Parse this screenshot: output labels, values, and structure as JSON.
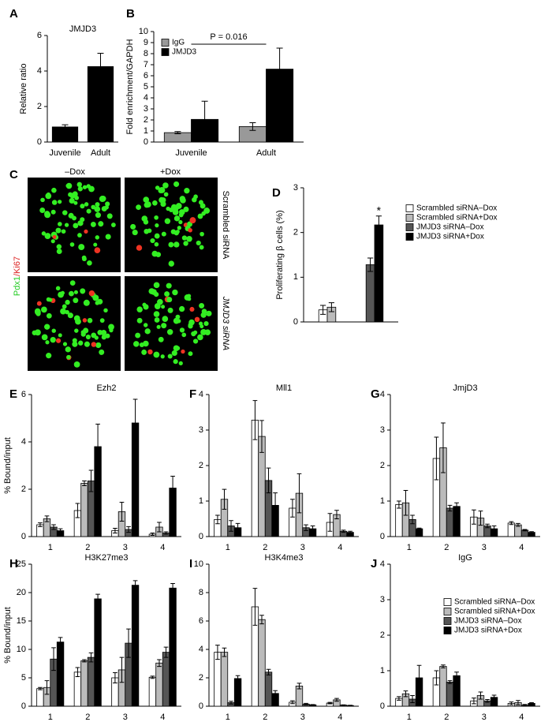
{
  "chart_data": [
    {
      "type": "bar",
      "panel": "A",
      "title": "JMJD3",
      "ylabel": "Relative ratio",
      "categories": [
        "Juvenile",
        "Adult"
      ],
      "values": [
        0.85,
        4.25
      ],
      "errors": [
        0.12,
        0.75
      ],
      "color": "#000000",
      "ylim": [
        0,
        6
      ],
      "yticks": [
        0,
        2,
        4,
        6
      ]
    },
    {
      "type": "bar",
      "panel": "B",
      "ylabel": "Fold enrichment/GAPDH",
      "categories": [
        "Juvenile",
        "Adult"
      ],
      "series": [
        {
          "name": "IgG",
          "color": "#999999",
          "values": [
            0.85,
            1.4
          ],
          "errors": [
            0.1,
            0.35
          ]
        },
        {
          "name": "JMJD3",
          "color": "#000000",
          "values": [
            2.05,
            6.6
          ],
          "errors": [
            1.65,
            1.9
          ]
        }
      ],
      "ylim": [
        0,
        10
      ],
      "yticks": [
        0,
        1,
        2,
        3,
        4,
        5,
        6,
        7,
        8,
        9,
        10
      ],
      "legend": "upper left",
      "annotation": "P = 0.016"
    },
    {
      "type": "bar",
      "panel": "D",
      "ylabel": "Proliferating β cells (%)",
      "categories": [
        null,
        null
      ],
      "series": [
        {
          "name": "Scrambled siRNA–Dox",
          "color": "#ffffff",
          "values": [
            0.27,
            null
          ],
          "errors": [
            0.1,
            null
          ]
        },
        {
          "name": "Scrambled siRNA+Dox",
          "color": "#bbbbbb",
          "values": [
            0.33,
            null
          ],
          "errors": [
            0.1,
            null
          ]
        },
        {
          "name": "JMJD3 siRNA–Dox",
          "color": "#555555",
          "values": [
            null,
            1.28
          ],
          "errors": [
            null,
            0.15
          ]
        },
        {
          "name": "JMJD3 siRNA+Dox",
          "color": "#000000",
          "values": [
            null,
            2.17
          ],
          "errors": [
            null,
            0.2
          ]
        }
      ],
      "ylim": [
        0,
        3
      ],
      "yticks": [
        0,
        1,
        2,
        3
      ],
      "legend": "right",
      "annotation": "*"
    },
    {
      "type": "bar",
      "panel": "E",
      "title": "Ezh2",
      "ylabel": "% Bound/input",
      "categories": [
        "1",
        "2",
        "3",
        "4"
      ],
      "series": [
        {
          "name": "Scrambled siRNA–Dox",
          "color": "#ffffff",
          "values": [
            0.5,
            1.1,
            0.25,
            0.1
          ],
          "errors": [
            0.08,
            0.3,
            0.1,
            0.05
          ]
        },
        {
          "name": "Scrambled siRNA+Dox",
          "color": "#bbbbbb",
          "values": [
            0.75,
            2.25,
            1.05,
            0.4
          ],
          "errors": [
            0.12,
            0.1,
            0.4,
            0.2
          ]
        },
        {
          "name": "JMJD3 siRNA–Dox",
          "color": "#555555",
          "values": [
            0.4,
            2.35,
            0.3,
            0.15
          ],
          "errors": [
            0.1,
            0.45,
            0.12,
            0.05
          ]
        },
        {
          "name": "JMJD3 siRNA+Dox",
          "color": "#000000",
          "values": [
            0.25,
            3.8,
            4.8,
            2.05
          ],
          "errors": [
            0.08,
            0.95,
            1.0,
            0.5
          ]
        }
      ],
      "ylim": [
        0,
        6
      ],
      "yticks": [
        0,
        2,
        4,
        6
      ]
    },
    {
      "type": "bar",
      "panel": "F",
      "title": "Mll1",
      "categories": [
        "1",
        "2",
        "3",
        "4"
      ],
      "series": [
        {
          "name": "Scrambled siRNA–Dox",
          "color": "#ffffff",
          "values": [
            0.48,
            3.28,
            0.8,
            0.4
          ],
          "errors": [
            0.12,
            0.55,
            0.25,
            0.25
          ]
        },
        {
          "name": "Scrambled siRNA+Dox",
          "color": "#bbbbbb",
          "values": [
            1.05,
            2.82,
            1.22,
            0.62
          ],
          "errors": [
            0.28,
            0.45,
            0.55,
            0.12
          ]
        },
        {
          "name": "JMJD3 siRNA–Dox",
          "color": "#555555",
          "values": [
            0.3,
            1.58,
            0.25,
            0.15
          ],
          "errors": [
            0.15,
            0.35,
            0.08,
            0.03
          ]
        },
        {
          "name": "JMJD3 siRNA+Dox",
          "color": "#000000",
          "values": [
            0.25,
            0.88,
            0.22,
            0.12
          ],
          "errors": [
            0.12,
            0.35,
            0.08,
            0.03
          ]
        }
      ],
      "ylim": [
        0,
        4
      ],
      "yticks": [
        0,
        1,
        2,
        3,
        4
      ]
    },
    {
      "type": "bar",
      "panel": "G",
      "title": "JmjD3",
      "categories": [
        "1",
        "2",
        "3",
        "4"
      ],
      "series": [
        {
          "name": "Scrambled siRNA–Dox",
          "color": "#ffffff",
          "values": [
            0.9,
            2.2,
            0.55,
            0.38
          ],
          "errors": [
            0.1,
            0.6,
            0.2,
            0.04
          ]
        },
        {
          "name": "Scrambled siRNA+Dox",
          "color": "#bbbbbb",
          "values": [
            0.95,
            2.5,
            0.52,
            0.33
          ],
          "errors": [
            0.35,
            0.7,
            0.2,
            0.04
          ]
        },
        {
          "name": "JMJD3 siRNA–Dox",
          "color": "#555555",
          "values": [
            0.48,
            0.8,
            0.3,
            0.18
          ],
          "errors": [
            0.12,
            0.08,
            0.05,
            0.02
          ]
        },
        {
          "name": "JMJD3 siRNA+Dox",
          "color": "#000000",
          "values": [
            0.22,
            0.85,
            0.22,
            0.12
          ],
          "errors": [
            0.02,
            0.1,
            0.08,
            0.02
          ]
        }
      ],
      "ylim": [
        0,
        4
      ],
      "yticks": [
        0,
        1,
        2,
        3,
        4
      ]
    },
    {
      "type": "bar",
      "panel": "H",
      "title": "H3K27me3",
      "ylabel": "% Bound/input",
      "categories": [
        "1",
        "2",
        "3",
        "4"
      ],
      "series": [
        {
          "name": "Scrambled siRNA–Dox",
          "color": "#ffffff",
          "values": [
            3.1,
            6,
            5,
            5.1
          ],
          "errors": [
            0.2,
            0.8,
            0.9,
            0.2
          ]
        },
        {
          "name": "Scrambled siRNA+Dox",
          "color": "#bbbbbb",
          "values": [
            3.3,
            8,
            6.4,
            7.6
          ],
          "errors": [
            1.2,
            0.2,
            2.2,
            0.6
          ]
        },
        {
          "name": "JMJD3 siRNA–Dox",
          "color": "#555555",
          "values": [
            8.3,
            8.6,
            11.1,
            9.5
          ],
          "errors": [
            2,
            0.8,
            2.5,
            0.9
          ]
        },
        {
          "name": "JMJD3 siRNA+Dox",
          "color": "#000000",
          "values": [
            11.3,
            18.9,
            21.3,
            20.8
          ],
          "errors": [
            0.8,
            0.8,
            0.8,
            0.8
          ]
        }
      ],
      "ylim": [
        0,
        25
      ],
      "yticks": [
        0,
        5,
        10,
        15,
        20,
        25
      ]
    },
    {
      "type": "bar",
      "panel": "I",
      "title": "H3K4me3",
      "categories": [
        "1",
        "2",
        "3",
        "4"
      ],
      "series": [
        {
          "name": "Scrambled siRNA–Dox",
          "color": "#ffffff",
          "values": [
            3.8,
            7,
            0.28,
            0.22
          ],
          "errors": [
            0.5,
            1.3,
            0.1,
            0.05
          ]
        },
        {
          "name": "Scrambled siRNA+Dox",
          "color": "#bbbbbb",
          "values": [
            3.8,
            6.1,
            1.42,
            0.45
          ],
          "errors": [
            0.3,
            0.3,
            0.2,
            0.1
          ]
        },
        {
          "name": "JMJD3 siRNA–Dox",
          "color": "#555555",
          "values": [
            0.25,
            2.4,
            0.15,
            0.08
          ],
          "errors": [
            0.1,
            0.2,
            0.05,
            0.02
          ]
        },
        {
          "name": "JMJD3 siRNA+Dox",
          "color": "#000000",
          "values": [
            1.95,
            0.9,
            0.1,
            0.05
          ],
          "errors": [
            0.2,
            0.2,
            0.02,
            0.02
          ]
        }
      ],
      "ylim": [
        0,
        10
      ],
      "yticks": [
        0,
        2,
        4,
        6,
        8,
        10
      ]
    },
    {
      "type": "bar",
      "panel": "J",
      "title": "IgG",
      "categories": [
        "1",
        "2",
        "3",
        "4"
      ],
      "series": [
        {
          "name": "Scrambled siRNA–Dox",
          "color": "#ffffff",
          "values": [
            0.22,
            0.8,
            0.15,
            0.08
          ],
          "errors": [
            0.05,
            0.2,
            0.08,
            0.04
          ]
        },
        {
          "name": "Scrambled siRNA+Dox",
          "color": "#bbbbbb",
          "values": [
            0.35,
            1.12,
            0.3,
            0.1
          ],
          "errors": [
            0.08,
            0.04,
            0.1,
            0.06
          ]
        },
        {
          "name": "JMJD3 siRNA–Dox",
          "color": "#555555",
          "values": [
            0.2,
            0.68,
            0.15,
            0.03
          ],
          "errors": [
            0.1,
            0.04,
            0.04,
            0.02
          ]
        },
        {
          "name": "JMJD3 siRNA+Dox",
          "color": "#000000",
          "values": [
            0.8,
            0.86,
            0.25,
            0.08
          ],
          "errors": [
            0.35,
            0.1,
            0.06,
            0.02
          ]
        }
      ],
      "ylim": [
        0,
        4
      ],
      "yticks": [
        0,
        1,
        2,
        3,
        4
      ],
      "legend": "upper right"
    }
  ],
  "panel_c": {
    "panel": "C",
    "columns": [
      "–Dox",
      "+Dox"
    ],
    "rows": [
      "Scrambled siRNA",
      "JMJD3 siRNA"
    ],
    "stain": [
      "Pdx1",
      "/Ki67"
    ]
  }
}
